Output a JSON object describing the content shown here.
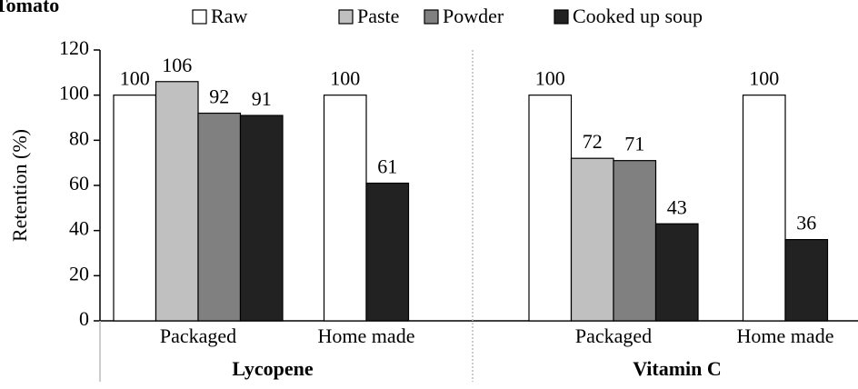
{
  "chart_data": {
    "type": "bar",
    "title": "Tomato",
    "y_label": "Retention (%)",
    "groups": [
      "Lycopene",
      "Vitamin C"
    ],
    "categories": [
      "Packaged",
      "Home made",
      "Packaged",
      "Home made"
    ],
    "series": [
      {
        "name": "Raw",
        "color": "#ffffff",
        "values": [
          100,
          100,
          100,
          100
        ]
      },
      {
        "name": "Paste",
        "color": "#c0c0c0",
        "values": [
          106,
          null,
          72,
          null
        ]
      },
      {
        "name": "Powder",
        "color": "#808080",
        "values": [
          92,
          null,
          71,
          null
        ]
      },
      {
        "name": "Cooked up soup",
        "color": "#222222",
        "values": [
          91,
          61,
          43,
          36
        ]
      }
    ],
    "ylim": [
      0,
      120
    ],
    "yticks": [
      0,
      20,
      40,
      60,
      80,
      100,
      120
    ],
    "grid": false,
    "legend": "top"
  }
}
